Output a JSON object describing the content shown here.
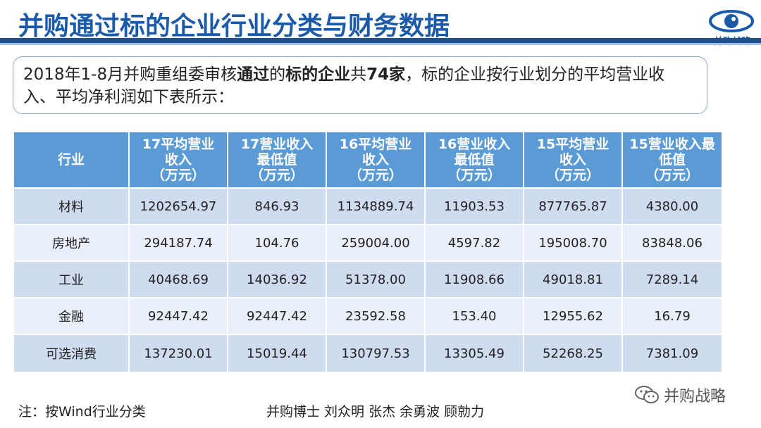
{
  "header": {
    "title": "并购通过标的企业行业分类与财务数据",
    "logo_text": "并购战略",
    "logo_icon": "eye-icon",
    "colors": {
      "title": "#1a5aa8",
      "rule": "#1f4f8f",
      "rule_light": "#9ec3ea"
    }
  },
  "intro": {
    "p1": "2018年1-8月并购重组委审核",
    "b1": "通过",
    "p2": "的",
    "b2": "标的企业",
    "p3": "共",
    "b3": "74家",
    "p4": "，标的企业按行业划分的平均营业收入、平均净利润如下表所示："
  },
  "table": {
    "colors": {
      "header_bg": "#5b9bd5",
      "row_odd": "#cfdbef",
      "row_even": "#e9eff8"
    },
    "headers": [
      {
        "line1": "行业",
        "line2": "",
        "line3": ""
      },
      {
        "line1": "17平均营业",
        "line2": "收入",
        "line3": "（万元）"
      },
      {
        "line1": "17营业收入",
        "line2": "最低值",
        "line3": "（万元）"
      },
      {
        "line1": "16平均营业",
        "line2": "收入",
        "line3": "（万元）"
      },
      {
        "line1": "16营业收入",
        "line2": "最低值",
        "line3": "（万元）"
      },
      {
        "line1": "15平均营业",
        "line2": "收入",
        "line3": "（万元）"
      },
      {
        "line1": "15营业收入最",
        "line2": "低值",
        "line3": "（万元）"
      }
    ],
    "rows": [
      [
        "材料",
        "1202654.97",
        "846.93",
        "1134889.74",
        "11903.53",
        "877765.87",
        "4380.00"
      ],
      [
        "房地产",
        "294187.74",
        "104.76",
        "259004.00",
        "4597.82",
        "195008.70",
        "83848.06"
      ],
      [
        "工业",
        "40468.69",
        "14036.92",
        "51378.00",
        "11908.66",
        "49018.81",
        "7289.14"
      ],
      [
        "金融",
        "92447.42",
        "92447.42",
        "23592.58",
        "153.40",
        "12955.62",
        "16.79"
      ],
      [
        "可选消费",
        "137230.01",
        "15019.44",
        "130797.53",
        "13305.49",
        "52268.25",
        "7381.09"
      ]
    ]
  },
  "footer": {
    "note": "注：按Wind行业分类",
    "authors": "并购博士 刘众明 张杰 余勇波 顾勍力",
    "watermark": "并购战略",
    "watermark_icon": "wechat-icon"
  }
}
